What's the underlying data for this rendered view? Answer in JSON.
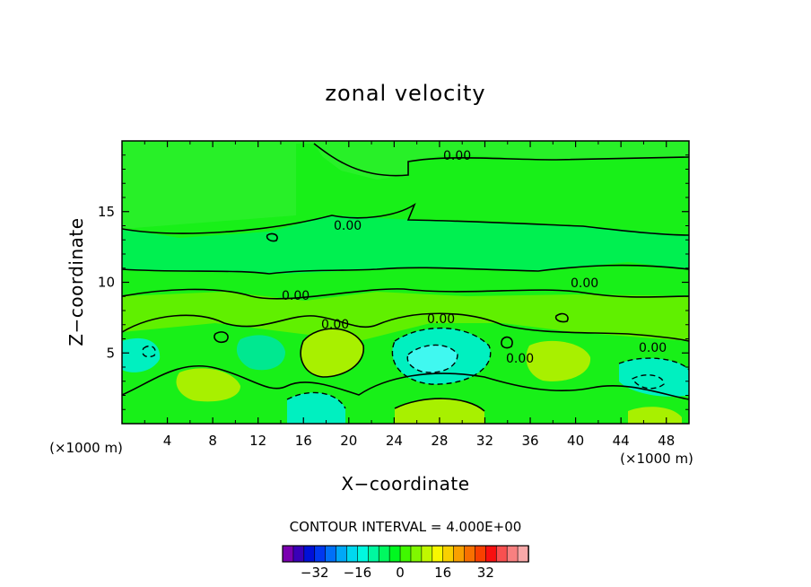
{
  "chart_data": {
    "type": "heatmap",
    "title": "zonal velocity",
    "xlabel": "X−coordinate",
    "ylabel": "Z−coordinate",
    "x_unit_label": "(×1000 m)",
    "y_unit_label": "(×1000 m)",
    "xlim": [
      0,
      50
    ],
    "ylim": [
      0,
      20
    ],
    "x_ticks": [
      "4",
      "8",
      "12",
      "16",
      "20",
      "24",
      "28",
      "32",
      "36",
      "40",
      "44",
      "48"
    ],
    "y_ticks": [
      "5",
      "10",
      "15"
    ],
    "contour_interval_text": "CONTOUR INTERVAL = 4.000E+00",
    "contour_labels": [
      "0.00",
      "0.00",
      "0.00",
      "0.00",
      "0.00",
      "0.00",
      "0.00",
      "0.00"
    ],
    "colorbar": {
      "tick_labels": [
        "−32",
        "−16",
        "0",
        "16",
        "32"
      ],
      "colors": [
        "#7a00b0",
        "#3a00b8",
        "#0010d8",
        "#0038f0",
        "#0070f8",
        "#00a8f8",
        "#00d8f0",
        "#00f8e0",
        "#00f8a0",
        "#00f860",
        "#00f820",
        "#40f800",
        "#80f800",
        "#c0f800",
        "#f8f800",
        "#f8d000",
        "#f8a000",
        "#f87000",
        "#f84000",
        "#f81010",
        "#f85050",
        "#f88080",
        "#f8a8a8"
      ]
    },
    "field_colors": {
      "bg": "#18f018",
      "upper": "#28f028",
      "band": "#00f050",
      "mid": "#60f000",
      "yellowgreen": "#a8f000",
      "cyan": "#00f0c0",
      "lightcyan": "#40f8f0",
      "teal": "#00e890"
    }
  }
}
